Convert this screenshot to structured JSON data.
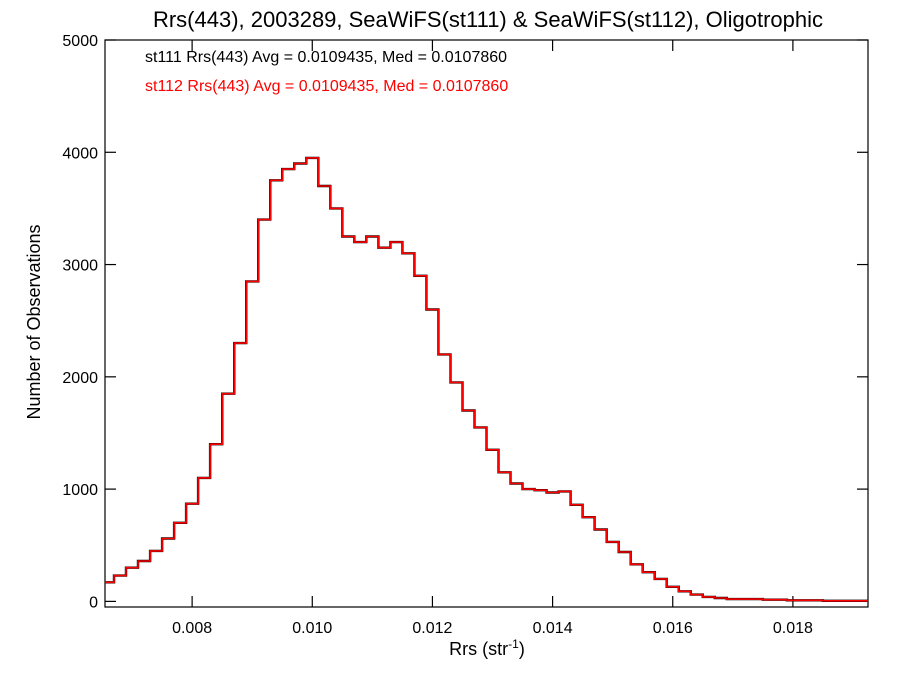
{
  "chart_data": {
    "type": "line",
    "title": "Rrs(443), 2003289, SeaWiFS(st111) & SeaWiFS(st112), Oligotrophic",
    "xlabel_main": "Rrs (str",
    "xlabel_sup": "-1",
    "xlabel_close": ")",
    "ylabel": "Number of Observations",
    "xlim": [
      0.00655,
      0.01925
    ],
    "ylim": [
      -50,
      5000
    ],
    "xticks": [
      0.008,
      0.01,
      0.012,
      0.014,
      0.016,
      0.018
    ],
    "xtick_labels": [
      "0.008",
      "0.010",
      "0.012",
      "0.014",
      "0.016",
      "0.018"
    ],
    "yticks": [
      0,
      1000,
      2000,
      3000,
      4000,
      5000
    ],
    "ytick_labels": [
      "0",
      "1000",
      "2000",
      "3000",
      "4000",
      "5000"
    ],
    "grid": false,
    "annotations": [
      {
        "text": "st111 Rrs(443) Avg = 0.0109435, Med = 0.0107860",
        "color": "#000000"
      },
      {
        "text": "st112 Rrs(443) Avg = 0.0109435, Med = 0.0107860",
        "color": "#ff0000"
      }
    ],
    "series": [
      {
        "name": "st111",
        "color": "#000000",
        "x": [
          0.0066,
          0.0068,
          0.007,
          0.0072,
          0.0074,
          0.0076,
          0.0078,
          0.008,
          0.0082,
          0.0084,
          0.0086,
          0.0088,
          0.009,
          0.0092,
          0.0094,
          0.0096,
          0.0098,
          0.01,
          0.0102,
          0.0104,
          0.0106,
          0.0108,
          0.011,
          0.0112,
          0.0114,
          0.0116,
          0.0118,
          0.012,
          0.0122,
          0.0124,
          0.0126,
          0.0128,
          0.013,
          0.0132,
          0.0134,
          0.0136,
          0.0138,
          0.014,
          0.0142,
          0.0144,
          0.0146,
          0.0148,
          0.015,
          0.0152,
          0.0154,
          0.0156,
          0.0158,
          0.016,
          0.0162,
          0.0164,
          0.0166,
          0.0168,
          0.017,
          0.0172,
          0.0174,
          0.0176,
          0.0178,
          0.018,
          0.0182,
          0.0184,
          0.0186,
          0.0188,
          0.019,
          0.0192
        ],
        "y": [
          170,
          230,
          300,
          360,
          450,
          560,
          700,
          870,
          1100,
          1400,
          1850,
          2300,
          2850,
          3400,
          3750,
          3850,
          3900,
          3950,
          3700,
          3500,
          3250,
          3200,
          3250,
          3150,
          3200,
          3100,
          2900,
          2600,
          2200,
          1950,
          1700,
          1550,
          1350,
          1150,
          1050,
          1000,
          990,
          970,
          980,
          860,
          750,
          640,
          530,
          440,
          330,
          260,
          200,
          130,
          90,
          60,
          40,
          30,
          20,
          20,
          20,
          15,
          15,
          10,
          10,
          10,
          5,
          5,
          5,
          5
        ]
      },
      {
        "name": "st112",
        "color": "#ff0000",
        "x": [
          0.0066,
          0.0068,
          0.007,
          0.0072,
          0.0074,
          0.0076,
          0.0078,
          0.008,
          0.0082,
          0.0084,
          0.0086,
          0.0088,
          0.009,
          0.0092,
          0.0094,
          0.0096,
          0.0098,
          0.01,
          0.0102,
          0.0104,
          0.0106,
          0.0108,
          0.011,
          0.0112,
          0.0114,
          0.0116,
          0.0118,
          0.012,
          0.0122,
          0.0124,
          0.0126,
          0.0128,
          0.013,
          0.0132,
          0.0134,
          0.0136,
          0.0138,
          0.014,
          0.0142,
          0.0144,
          0.0146,
          0.0148,
          0.015,
          0.0152,
          0.0154,
          0.0156,
          0.0158,
          0.016,
          0.0162,
          0.0164,
          0.0166,
          0.0168,
          0.017,
          0.0172,
          0.0174,
          0.0176,
          0.0178,
          0.018,
          0.0182,
          0.0184,
          0.0186,
          0.0188,
          0.019,
          0.0192
        ],
        "y": [
          170,
          230,
          300,
          360,
          450,
          560,
          700,
          870,
          1100,
          1400,
          1850,
          2300,
          2850,
          3400,
          3750,
          3850,
          3900,
          3950,
          3700,
          3500,
          3250,
          3200,
          3250,
          3150,
          3200,
          3100,
          2900,
          2600,
          2200,
          1950,
          1700,
          1550,
          1350,
          1150,
          1050,
          1000,
          990,
          970,
          980,
          860,
          750,
          640,
          530,
          440,
          330,
          260,
          200,
          130,
          90,
          60,
          40,
          30,
          20,
          20,
          20,
          15,
          15,
          10,
          10,
          10,
          5,
          5,
          5,
          5
        ]
      }
    ]
  }
}
